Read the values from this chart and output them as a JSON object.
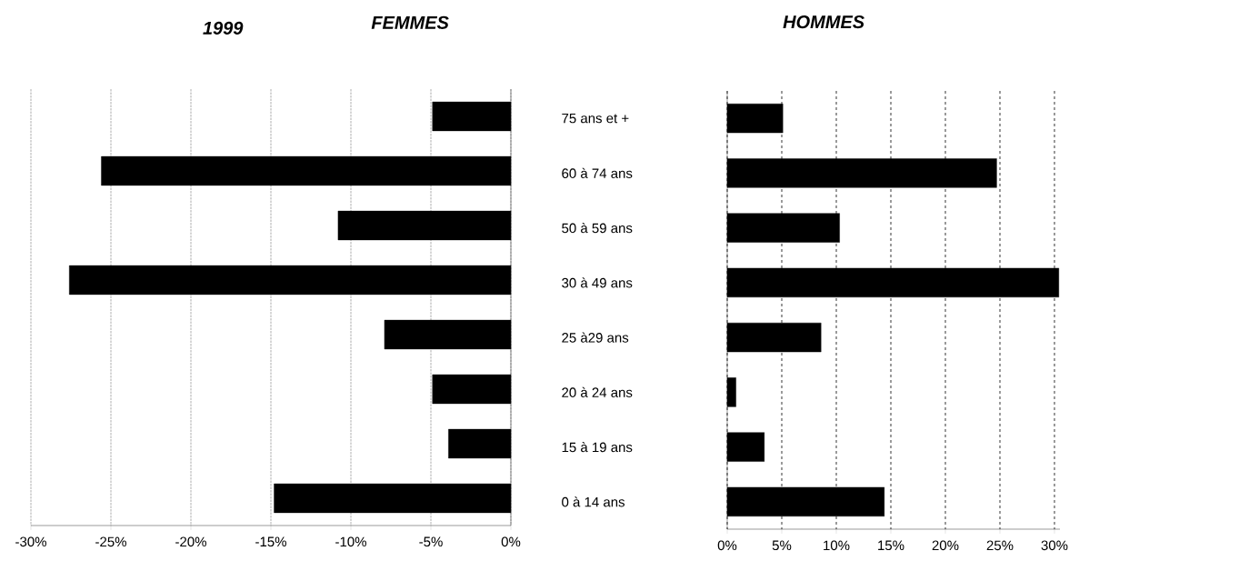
{
  "chart_data": [
    {
      "type": "bar",
      "orientation": "horizontal",
      "title": "FEMMES",
      "annotations": [
        "1999"
      ],
      "categories": [
        null,
        null,
        null,
        null,
        null,
        null,
        null,
        null
      ],
      "values": [
        -4.9,
        -25.6,
        -10.8,
        -27.6,
        -7.9,
        -4.9,
        -3.9,
        -14.8
      ],
      "color": "#000000",
      "xlim": [
        -30,
        0
      ],
      "xticks": [
        {
          "value": -30,
          "label": "-30%"
        },
        {
          "value": -25,
          "label": "-25%"
        },
        {
          "value": -20,
          "label": "-20%"
        },
        {
          "value": -15,
          "label": "-15%"
        },
        {
          "value": -10,
          "label": "-10%"
        },
        {
          "value": -5,
          "label": "-5%"
        },
        {
          "value": 0,
          "label": "0%"
        }
      ],
      "grid": "x"
    },
    {
      "type": "bar",
      "orientation": "horizontal",
      "title": "HOMMES",
      "categories": [
        "75 ans et +",
        "60 à 74 ans",
        "50 à 59 ans",
        "30 à 49 ans",
        "25 à29 ans",
        "20 à 24 ans",
        "15 à 19 ans",
        "0 à 14 ans"
      ],
      "values": [
        5.1,
        24.7,
        10.3,
        30.4,
        8.6,
        0.8,
        3.4,
        14.4
      ],
      "color": "#000000",
      "xlim": [
        0,
        30.5
      ],
      "xticks": [
        {
          "value": 0,
          "label": "0%"
        },
        {
          "value": 5,
          "label": "5%"
        },
        {
          "value": 10,
          "label": "10%"
        },
        {
          "value": 15,
          "label": "15%"
        },
        {
          "value": 20,
          "label": "20%"
        },
        {
          "value": 25,
          "label": "25%"
        },
        {
          "value": 30,
          "label": "30%"
        }
      ],
      "grid": "x"
    }
  ]
}
